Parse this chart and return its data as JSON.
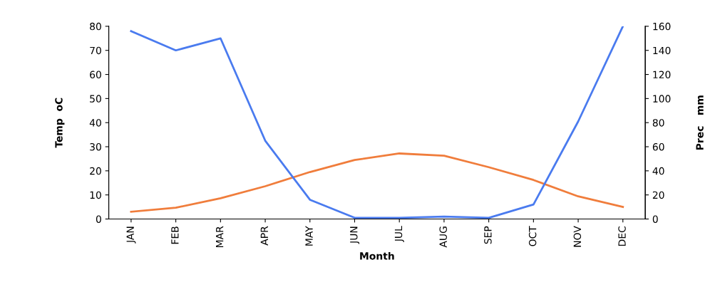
{
  "chart_data": {
    "type": "line",
    "xlabel": "Month",
    "ylabel": "Temp  oC",
    "y2label": "Prec   mm",
    "categories": [
      "JAN",
      "FEB",
      "MAR",
      "APR",
      "MAY",
      "JUN",
      "JUL",
      "AUG",
      "SEP",
      "OCT",
      "NOV",
      "DEC"
    ],
    "series": [
      {
        "color": "#4a7bef",
        "axis": "y2",
        "values": [
          156,
          140,
          150,
          65,
          16,
          1,
          1,
          2,
          1,
          12,
          81,
          160
        ]
      },
      {
        "color": "#f07d3c",
        "values": [
          3,
          4.7,
          8.6,
          13.6,
          19.5,
          24.5,
          27.2,
          26.3,
          21.5,
          16.2,
          9.4,
          5
        ]
      }
    ],
    "ylim": [
      0,
      80
    ],
    "yticks": [
      0,
      10,
      20,
      30,
      40,
      50,
      60,
      70,
      80
    ],
    "y2lim": [
      0,
      160
    ],
    "y2ticks": [
      0,
      20,
      40,
      60,
      80,
      100,
      120,
      140,
      160
    ],
    "grid": false,
    "marker": "none",
    "line_style": "solid"
  }
}
